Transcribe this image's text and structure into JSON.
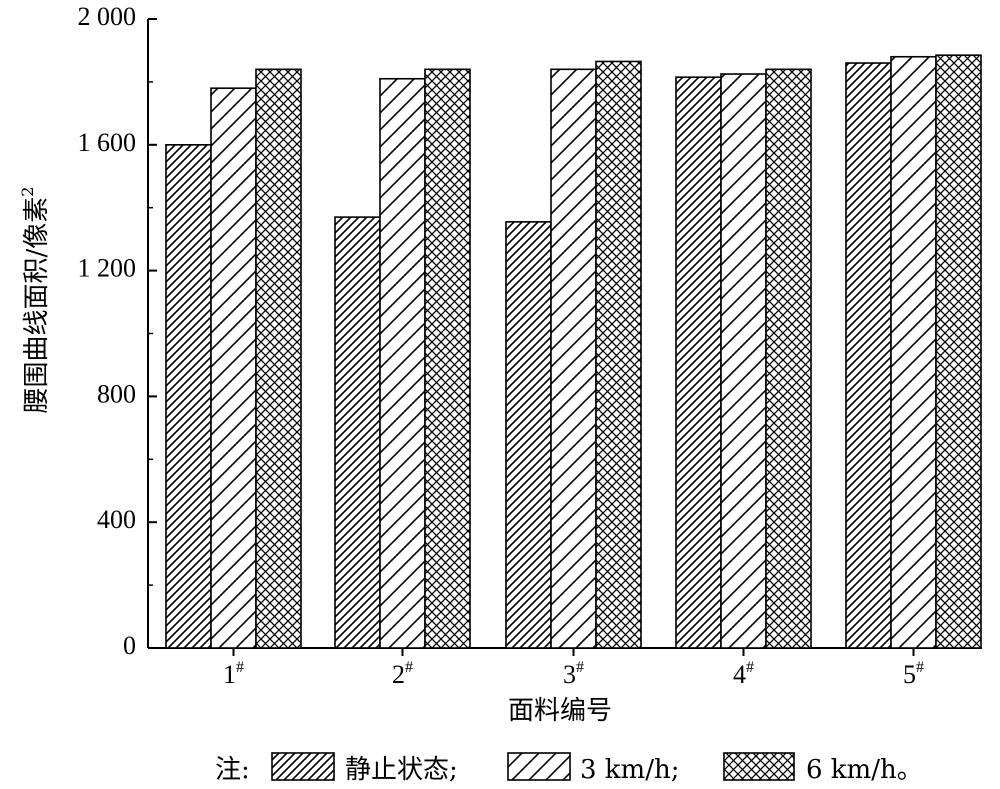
{
  "chart_data": {
    "type": "bar",
    "title": "",
    "xlabel": "面料编号",
    "ylabel": "腰围曲线面积/像素²",
    "categories": [
      "1",
      "2",
      "3",
      "4",
      "5"
    ],
    "category_superscript": "#",
    "ylim": [
      0,
      2000
    ],
    "yticks": [
      0,
      400,
      800,
      1200,
      1600,
      2000
    ],
    "ytick_labels": [
      "0",
      "400",
      "800",
      "1 200",
      "1 600",
      "2 000"
    ],
    "series": [
      {
        "name": "静止状态",
        "pattern": "dense-diagonal",
        "values": [
          1600,
          1370,
          1355,
          1815,
          1860
        ]
      },
      {
        "name": "3 km/h",
        "pattern": "sparse-diagonal",
        "values": [
          1780,
          1810,
          1840,
          1825,
          1880
        ]
      },
      {
        "name": "6 km/h",
        "pattern": "crosshatch",
        "values": [
          1840,
          1840,
          1865,
          1840,
          1885
        ]
      }
    ],
    "grid": false
  },
  "legend": {
    "prefix": "注:",
    "entries": [
      {
        "label": "静止状态",
        "suffix": ";"
      },
      {
        "label": "3 km/h",
        "suffix": ";"
      },
      {
        "label": "6 km/h",
        "suffix": "。"
      }
    ]
  },
  "colors": {
    "stroke": "#000000",
    "background": "#ffffff"
  }
}
